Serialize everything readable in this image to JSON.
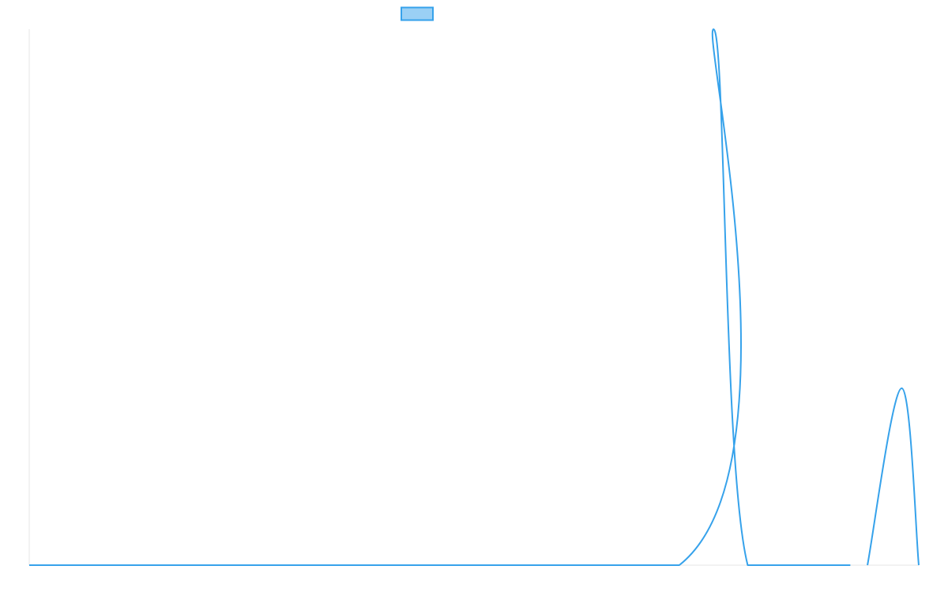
{
  "chart_data": {
    "type": "line",
    "title": "",
    "xlabel": "",
    "ylabel": "",
    "grid": false,
    "legend_position": "top-center",
    "x": [
      0,
      19,
      20,
      21,
      24
    ],
    "xlim": [
      0,
      26
    ],
    "ylim": [
      0,
      100
    ],
    "series": [
      {
        "name": "",
        "color": "#36a2eb",
        "fill": "#9ad0f5",
        "values": [
          0,
          0,
          100,
          0,
          0
        ]
      },
      {
        "name": "",
        "color": "#36a2eb",
        "fill": "#9ad0f5",
        "x": [
          24.5,
          25.5,
          26
        ],
        "values": [
          0,
          33,
          0
        ]
      }
    ]
  }
}
